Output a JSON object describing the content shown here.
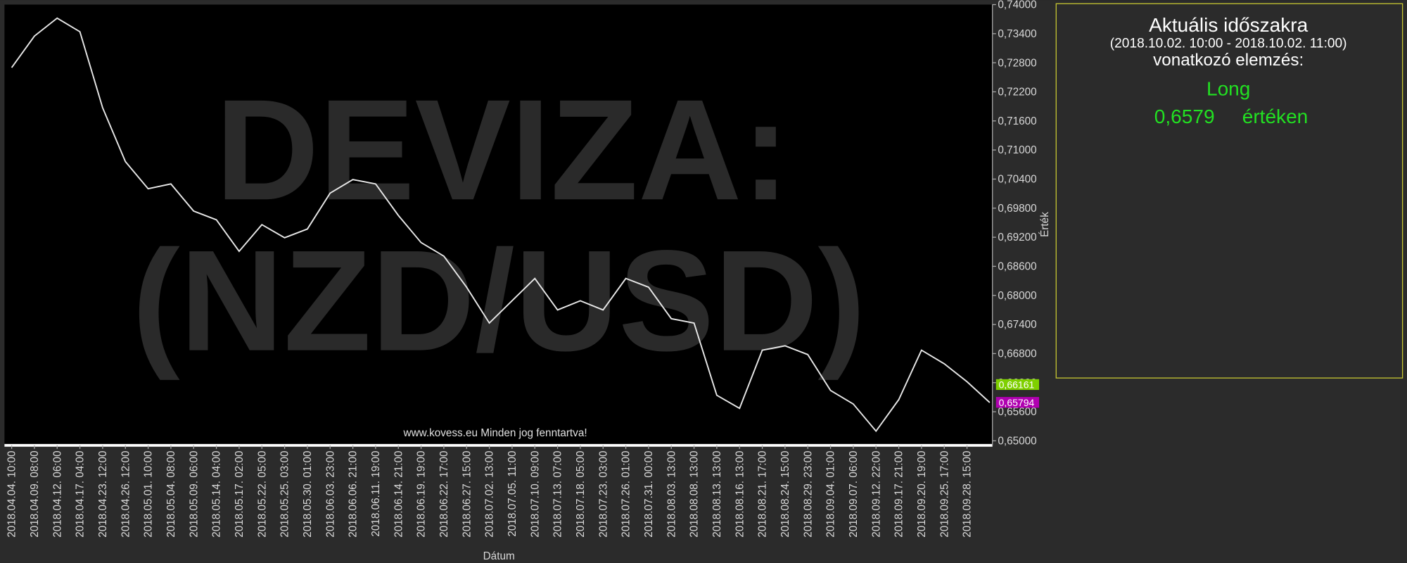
{
  "chart_data": {
    "type": "line",
    "watermark": [
      "DEVIZA:",
      "(NZD/USD)"
    ],
    "copyright": "www.kovess.eu Minden jog fenntartva!",
    "x_label": "Dátum",
    "y_label": "Érték",
    "color": "#e8e8e8",
    "categories": [
      "2018.04.04. 10:00",
      "2018.04.09. 08:00",
      "2018.04.12. 06:00",
      "2018.04.17. 04:00",
      "2018.04.23. 12:00",
      "2018.04.26. 12:00",
      "2018.05.01. 10:00",
      "2018.05.04. 08:00",
      "2018.05.09. 06:00",
      "2018.05.14. 04:00",
      "2018.05.17. 02:00",
      "2018.05.22. 05:00",
      "2018.05.25. 03:00",
      "2018.05.30. 01:00",
      "2018.06.03. 23:00",
      "2018.06.06. 21:00",
      "2018.06.11. 19:00",
      "2018.06.14. 21:00",
      "2018.06.19. 19:00",
      "2018.06.22. 17:00",
      "2018.06.27. 15:00",
      "2018.07.02. 13:00",
      "2018.07.05. 11:00",
      "2018.07.10. 09:00",
      "2018.07.13. 07:00",
      "2018.07.18. 05:00",
      "2018.07.23. 03:00",
      "2018.07.26. 01:00",
      "2018.07.31. 00:00",
      "2018.08.03. 13:00",
      "2018.08.08. 13:00",
      "2018.08.13. 13:00",
      "2018.08.16. 13:00",
      "2018.08.21. 17:00",
      "2018.08.24. 15:00",
      "2018.08.29. 23:00",
      "2018.09.04. 01:00",
      "2018.09.07. 06:00",
      "2018.09.12. 22:00",
      "2018.09.17. 21:00",
      "2018.09.20. 19:00",
      "2018.09.25. 17:00",
      "2018.09.28. 15:00",
      null
    ],
    "values": [
      0.727,
      0.7335,
      0.7372,
      0.7344,
      0.7187,
      0.7076,
      0.702,
      0.703,
      0.6974,
      0.6956,
      0.6891,
      0.6946,
      0.6919,
      0.6937,
      0.7011,
      0.7039,
      0.703,
      0.6965,
      0.6909,
      0.6881,
      0.6817,
      0.6743,
      0.6789,
      0.6835,
      0.677,
      0.6789,
      0.677,
      0.6835,
      0.6817,
      0.6752,
      0.6743,
      0.6594,
      0.6567,
      0.6687,
      0.6696,
      0.6678,
      0.6604,
      0.6576,
      0.652,
      0.6585,
      0.6687,
      0.6659,
      0.6622,
      0.6579
    ],
    "ylim": [
      0.65,
      0.74
    ],
    "yticks": [
      {
        "value": 0.65,
        "label": "0,65000"
      },
      {
        "value": 0.656,
        "label": "0,65600"
      },
      {
        "value": 0.662,
        "label": "0,66200"
      },
      {
        "value": 0.668,
        "label": "0,66800"
      },
      {
        "value": 0.674,
        "label": "0,67400"
      },
      {
        "value": 0.68,
        "label": "0,68000"
      },
      {
        "value": 0.686,
        "label": "0,68600"
      },
      {
        "value": 0.692,
        "label": "0,69200"
      },
      {
        "value": 0.698,
        "label": "0,69800"
      },
      {
        "value": 0.704,
        "label": "0,70400"
      },
      {
        "value": 0.71,
        "label": "0,71000"
      },
      {
        "value": 0.716,
        "label": "0,71600"
      },
      {
        "value": 0.722,
        "label": "0,72200"
      },
      {
        "value": 0.728,
        "label": "0,72800"
      },
      {
        "value": 0.734,
        "label": "0,73400"
      },
      {
        "value": 0.74,
        "label": "0,74000"
      }
    ],
    "price_tags": [
      {
        "value": 0.66161,
        "label": "0,66161",
        "color": "#7fd000"
      },
      {
        "value": 0.65794,
        "label": "0,65794",
        "color": "#b000b0"
      }
    ]
  },
  "panel": {
    "title": "Aktuális időszakra",
    "period": "(2018.10.02. 10:00 - 2018.10.02. 11:00)",
    "subtitle": "vonatkozó elemzés:",
    "signal": "Long",
    "price": "0,6579",
    "price_suffix": "értéken"
  }
}
